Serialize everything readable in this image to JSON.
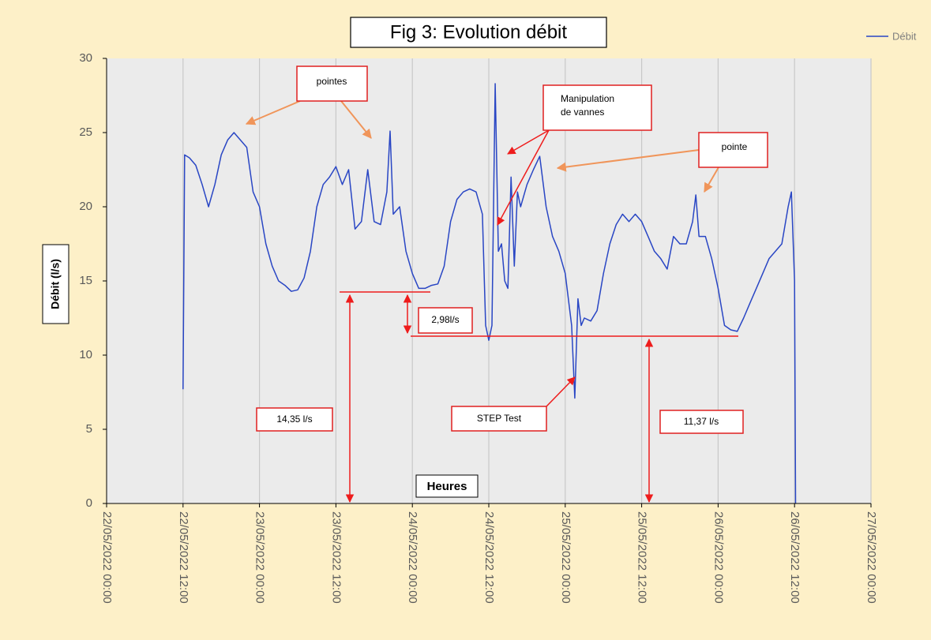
{
  "chart_data": {
    "type": "line",
    "title": "Fig 3: Evolution débit",
    "ylabel": "Débit (l/s)",
    "xlabel": "Heures",
    "ylim": [
      0,
      30
    ],
    "yticks": [
      0,
      5,
      10,
      15,
      20,
      25,
      30
    ],
    "xlim": [
      "2022-05-22 00:00",
      "2022-05-27 00:00"
    ],
    "xticks": [
      {
        "value": "2022-05-22 00:00",
        "label": "22/05/2022 00:00"
      },
      {
        "value": "2022-05-22 12:00",
        "label": "22/05/2022 12:00"
      },
      {
        "value": "2022-05-23 00:00",
        "label": "23/05/2022 00:00"
      },
      {
        "value": "2022-05-23 12:00",
        "label": "23/05/2022 12:00"
      },
      {
        "value": "2022-05-24 00:00",
        "label": "24/05/2022 00:00"
      },
      {
        "value": "2022-05-24 12:00",
        "label": "24/05/2022 12:00"
      },
      {
        "value": "2022-05-25 00:00",
        "label": "25/05/2022 00:00"
      },
      {
        "value": "2022-05-25 12:00",
        "label": "25/05/2022 12:00"
      },
      {
        "value": "2022-05-26 00:00",
        "label": "26/05/2022 00:00"
      },
      {
        "value": "2022-05-26 12:00",
        "label": "26/05/2022 12:00"
      },
      {
        "value": "2022-05-27 00:00",
        "label": "27/05/2022 00:00"
      }
    ],
    "xgrid": true,
    "legend": "top-right",
    "x": [
      "2022-05-22 12:00",
      "2022-05-22 12:15",
      "2022-05-22 13:00",
      "2022-05-22 14:00",
      "2022-05-22 15:00",
      "2022-05-22 16:00",
      "2022-05-22 17:00",
      "2022-05-22 18:00",
      "2022-05-22 19:00",
      "2022-05-22 20:00",
      "2022-05-22 21:00",
      "2022-05-22 22:00",
      "2022-05-22 23:00",
      "2022-05-23 00:00",
      "2022-05-23 01:00",
      "2022-05-23 02:00",
      "2022-05-23 03:00",
      "2022-05-23 04:00",
      "2022-05-23 05:00",
      "2022-05-23 06:00",
      "2022-05-23 07:00",
      "2022-05-23 08:00",
      "2022-05-23 09:00",
      "2022-05-23 10:00",
      "2022-05-23 11:00",
      "2022-05-23 12:00",
      "2022-05-23 13:00",
      "2022-05-23 14:00",
      "2022-05-23 15:00",
      "2022-05-23 16:00",
      "2022-05-23 17:00",
      "2022-05-23 18:00",
      "2022-05-23 19:00",
      "2022-05-23 20:00",
      "2022-05-23 20:30",
      "2022-05-23 21:00",
      "2022-05-23 22:00",
      "2022-05-23 23:00",
      "2022-05-24 00:00",
      "2022-05-24 01:00",
      "2022-05-24 02:00",
      "2022-05-24 03:00",
      "2022-05-24 04:00",
      "2022-05-24 05:00",
      "2022-05-24 06:00",
      "2022-05-24 07:00",
      "2022-05-24 08:00",
      "2022-05-24 09:00",
      "2022-05-24 10:00",
      "2022-05-24 11:00",
      "2022-05-24 11:30",
      "2022-05-24 12:00",
      "2022-05-24 12:30",
      "2022-05-24 13:00",
      "2022-05-24 13:30",
      "2022-05-24 14:00",
      "2022-05-24 14:30",
      "2022-05-24 15:00",
      "2022-05-24 15:30",
      "2022-05-24 16:00",
      "2022-05-24 16:30",
      "2022-05-24 17:00",
      "2022-05-24 18:00",
      "2022-05-24 19:00",
      "2022-05-24 20:00",
      "2022-05-24 21:00",
      "2022-05-24 22:00",
      "2022-05-24 23:00",
      "2022-05-25 00:00",
      "2022-05-25 01:00",
      "2022-05-25 01:30",
      "2022-05-25 02:00",
      "2022-05-25 02:30",
      "2022-05-25 03:00",
      "2022-05-25 04:00",
      "2022-05-25 05:00",
      "2022-05-25 06:00",
      "2022-05-25 07:00",
      "2022-05-25 08:00",
      "2022-05-25 09:00",
      "2022-05-25 10:00",
      "2022-05-25 11:00",
      "2022-05-25 12:00",
      "2022-05-25 13:00",
      "2022-05-25 14:00",
      "2022-05-25 15:00",
      "2022-05-25 16:00",
      "2022-05-25 17:00",
      "2022-05-25 18:00",
      "2022-05-25 19:00",
      "2022-05-25 20:00",
      "2022-05-25 20:30",
      "2022-05-25 21:00",
      "2022-05-25 22:00",
      "2022-05-25 23:00",
      "2022-05-26 00:00",
      "2022-05-26 01:00",
      "2022-05-26 02:00",
      "2022-05-26 03:00",
      "2022-05-26 04:00",
      "2022-05-26 05:00",
      "2022-05-26 06:00",
      "2022-05-26 07:00",
      "2022-05-26 08:00",
      "2022-05-26 09:00",
      "2022-05-26 10:00",
      "2022-05-26 11:00",
      "2022-05-26 11:30",
      "2022-05-26 12:00",
      "2022-05-26 12:10"
    ],
    "series": [
      {
        "name": "Débit",
        "color": "#2946c4",
        "values": [
          7.7,
          23.5,
          23.3,
          22.8,
          21.5,
          20,
          21.5,
          23.5,
          24.5,
          25,
          24.5,
          24,
          21,
          20,
          17.5,
          16,
          15,
          14.7,
          14.3,
          14.4,
          15.2,
          17,
          20,
          21.5,
          22,
          22.7,
          21.5,
          22.5,
          18.5,
          19,
          22.5,
          19,
          18.8,
          21,
          25.1,
          19.5,
          20,
          17,
          15.5,
          14.5,
          14.5,
          14.7,
          14.8,
          16,
          19,
          20.5,
          21,
          21.2,
          21,
          19.5,
          12,
          11,
          12,
          28.3,
          17,
          17.5,
          15,
          14.5,
          22,
          16,
          21,
          20,
          21.5,
          22.5,
          23.4,
          20,
          18,
          17,
          15.5,
          12,
          7.1,
          13.8,
          12,
          12.5,
          12.3,
          13,
          15.5,
          17.5,
          18.8,
          19.5,
          19,
          19.5,
          19,
          18,
          17,
          16.5,
          15.8,
          18,
          17.5,
          17.5,
          19,
          20.8,
          18,
          18,
          16.5,
          14.5,
          12,
          11.7,
          11.6,
          12.5,
          13.5,
          14.5,
          15.5,
          16.5,
          17,
          17.5,
          20,
          21,
          15,
          0
        ]
      }
    ],
    "annotations": {
      "pointes": "pointes",
      "manipulation": [
        "Manipulation",
        "de vannes"
      ],
      "pointe": "pointe",
      "delta": "2,98l/s",
      "high": "14,35 l/s",
      "step": "STEP Test",
      "low": "11,37 l/s"
    }
  }
}
